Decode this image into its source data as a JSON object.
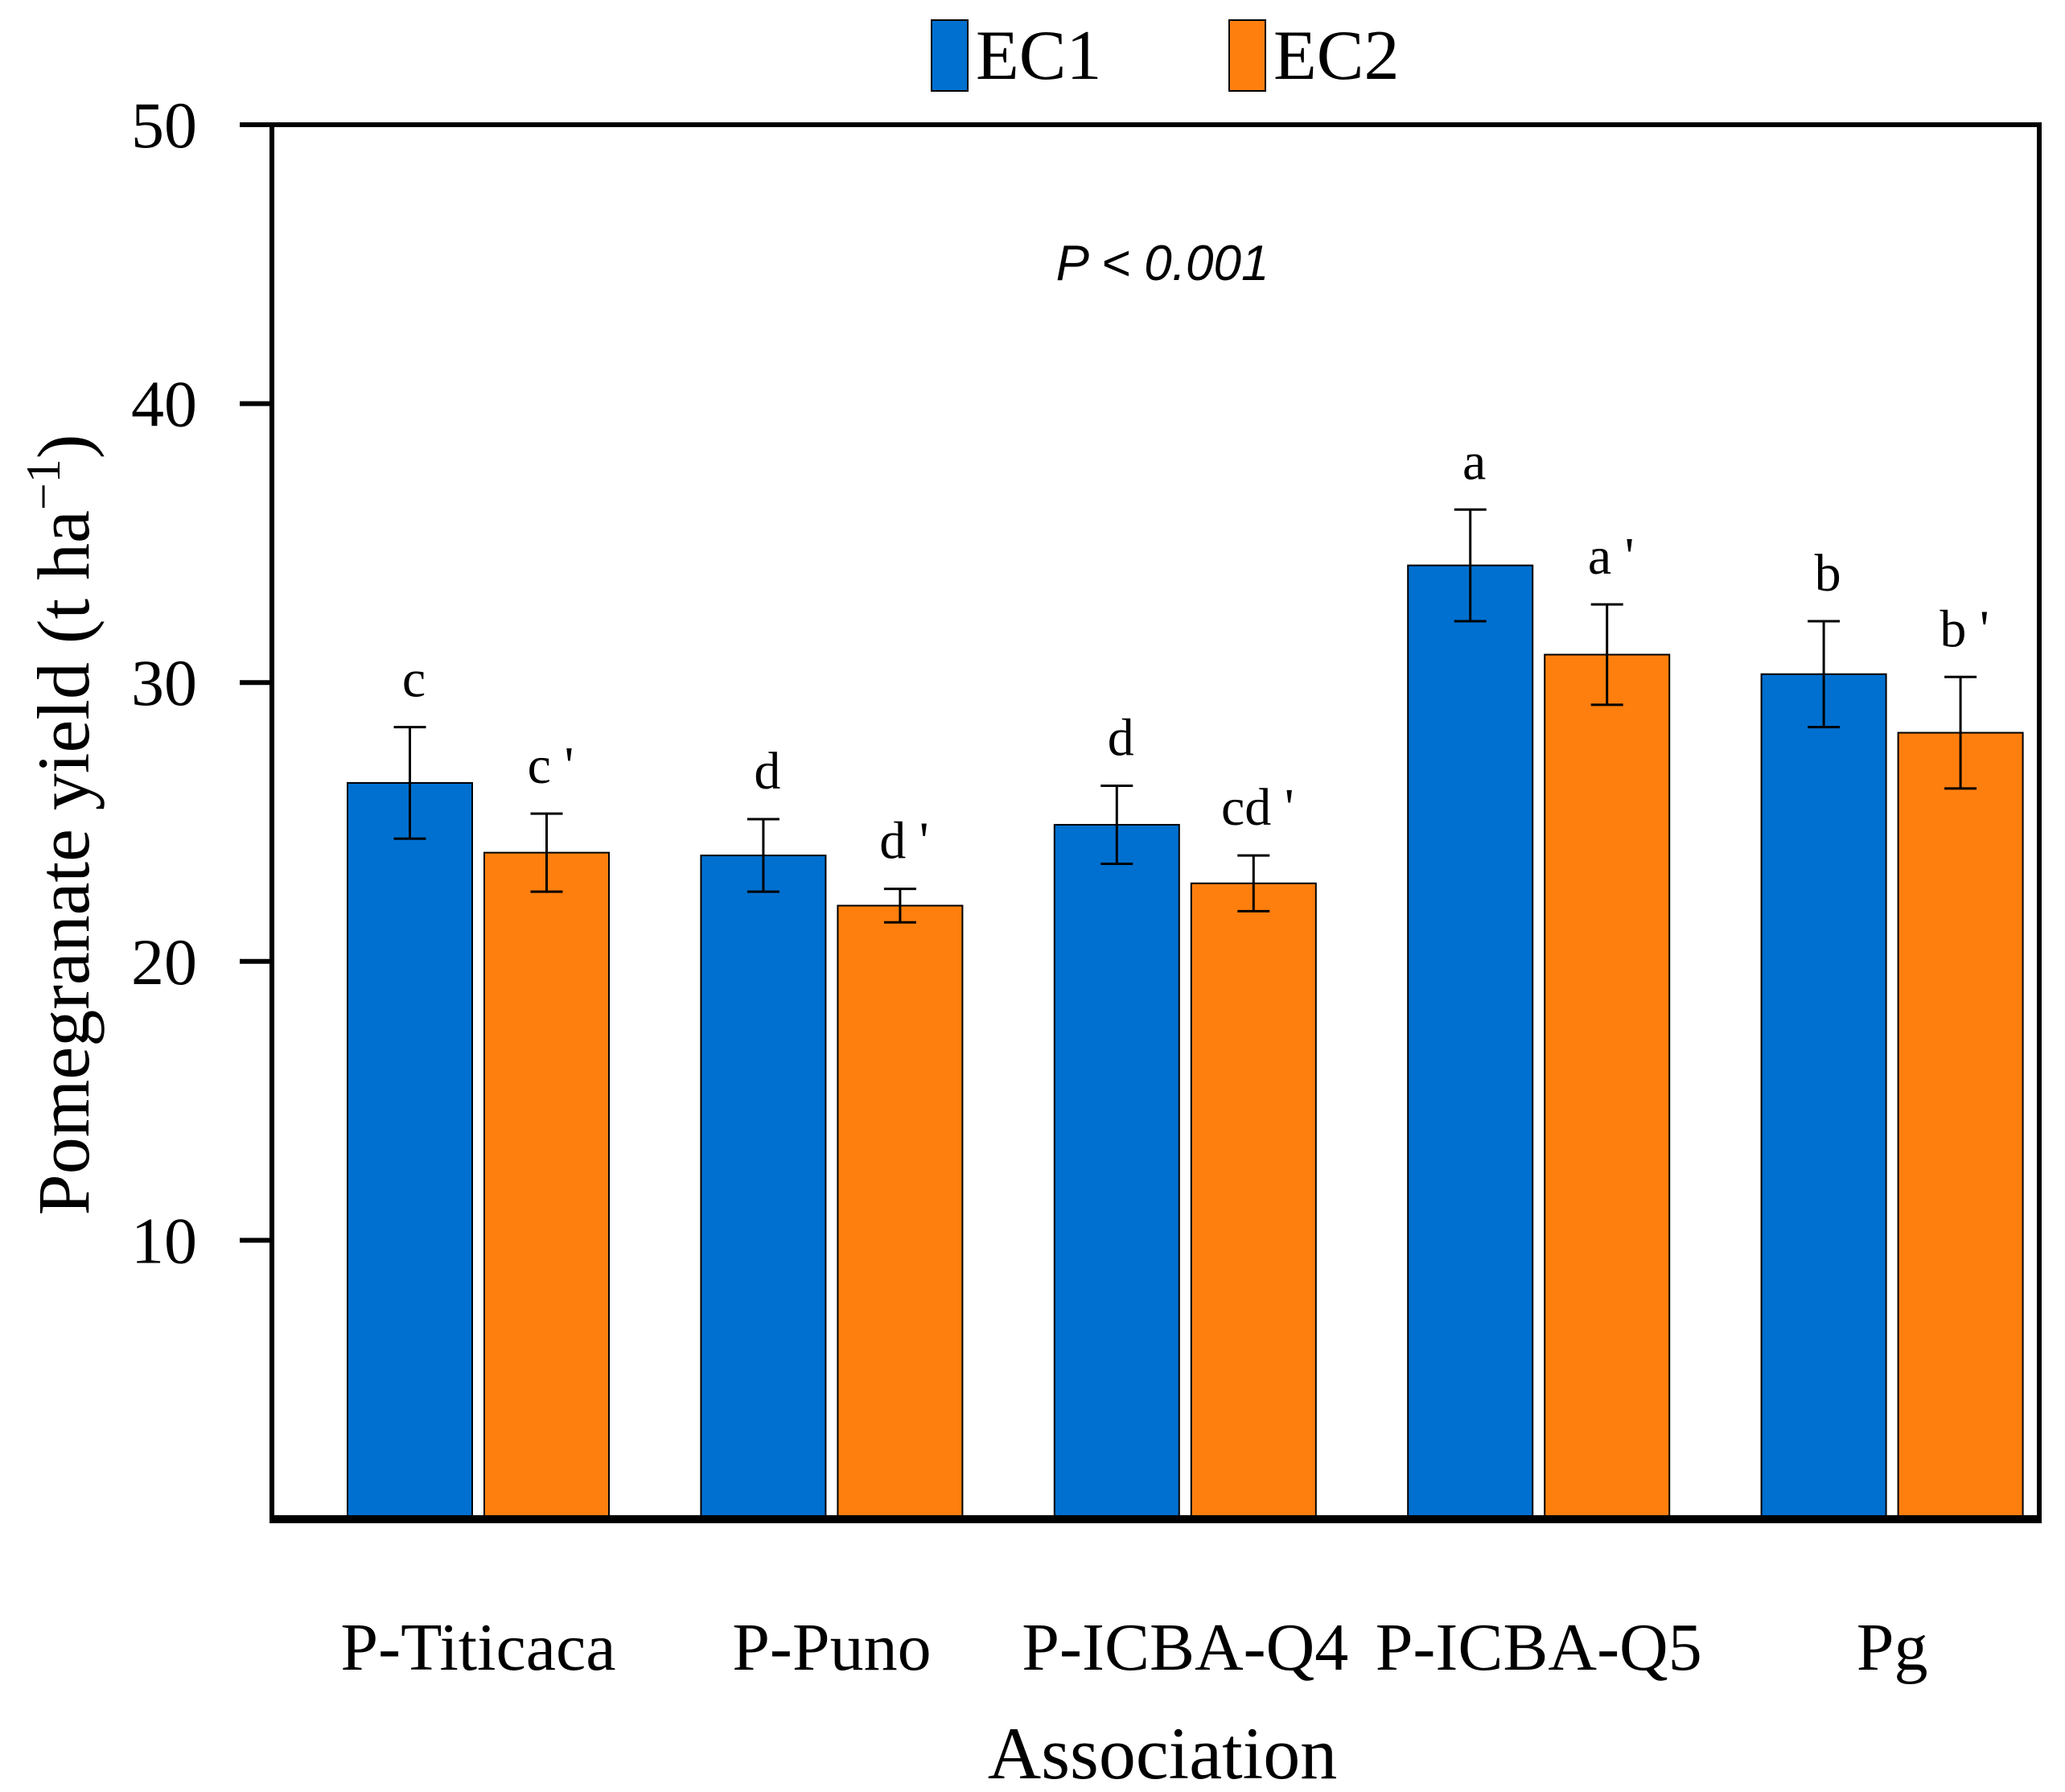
{
  "chart_data": {
    "type": "bar",
    "xlabel": "Association",
    "ylabel": "Pomegranate yield (t ha",
    "ylabel_superscript": "−1",
    "ylabel_close": ")",
    "annotation": "P < 0.001",
    "ylim": [
      0,
      50
    ],
    "yticks": [
      10,
      20,
      30,
      40,
      50
    ],
    "categories": [
      "P-Titicaca",
      "P-Puno",
      "P-ICBA-Q4",
      "P-ICBA-Q5",
      "Pg"
    ],
    "legend_position": "top-center",
    "grid": false,
    "series": [
      {
        "name": "EC1",
        "color": "#0070d0",
        "values": [
          26.4,
          23.8,
          24.9,
          34.2,
          30.3
        ],
        "errors": [
          2.0,
          1.3,
          1.4,
          2.0,
          1.9
        ],
        "letters": [
          "c",
          "d",
          "d",
          "a",
          "b"
        ]
      },
      {
        "name": "EC2",
        "color": "#ff7f0e",
        "values": [
          23.9,
          22.0,
          22.8,
          31.0,
          28.2
        ],
        "errors": [
          1.4,
          0.6,
          1.0,
          1.8,
          2.0
        ],
        "letters": [
          "c '",
          "d '",
          "cd '",
          "a '",
          "b '"
        ]
      }
    ]
  }
}
